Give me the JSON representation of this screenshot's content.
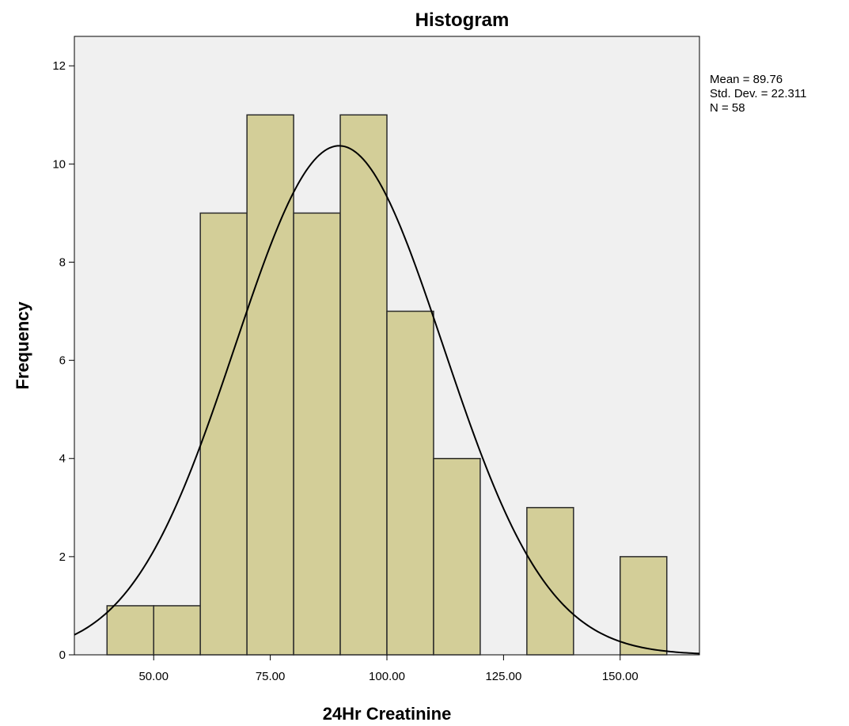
{
  "chart_data": {
    "type": "bar",
    "title": "Histogram",
    "xlabel": "24Hr Creatinine",
    "ylabel": "Frequency",
    "bins": [
      {
        "start": 40,
        "end": 50,
        "count": 1
      },
      {
        "start": 50,
        "end": 60,
        "count": 1
      },
      {
        "start": 60,
        "end": 70,
        "count": 9
      },
      {
        "start": 70,
        "end": 80,
        "count": 11
      },
      {
        "start": 80,
        "end": 90,
        "count": 9
      },
      {
        "start": 90,
        "end": 100,
        "count": 11
      },
      {
        "start": 100,
        "end": 110,
        "count": 7
      },
      {
        "start": 110,
        "end": 120,
        "count": 4
      },
      {
        "start": 120,
        "end": 130,
        "count": 0
      },
      {
        "start": 130,
        "end": 140,
        "count": 3
      },
      {
        "start": 140,
        "end": 150,
        "count": 0
      },
      {
        "start": 150,
        "end": 160,
        "count": 2
      }
    ],
    "xlim": [
      33,
      167
    ],
    "ylim": [
      0,
      12.6
    ],
    "x_ticks": [
      50,
      75,
      100,
      125,
      150
    ],
    "x_tick_labels": [
      "50.00",
      "75.00",
      "100.00",
      "125.00",
      "150.00"
    ],
    "y_ticks": [
      0,
      2,
      4,
      6,
      8,
      10,
      12
    ],
    "y_tick_labels": [
      "0",
      "2",
      "4",
      "6",
      "8",
      "10",
      "12"
    ],
    "normal_curve": {
      "mean": 89.76,
      "std_dev": 22.311,
      "n": 58,
      "bin_width": 10
    },
    "stats_lines": [
      "Mean = 89.76",
      "Std. Dev. = 22.311",
      "N = 58"
    ],
    "legend_position": "top-right outside plot",
    "grid": false,
    "colors": {
      "bar_fill": "#d3ce98",
      "bar_stroke": "#2a2a2a",
      "plot_background": "#f0f0f0",
      "curve": "#000000"
    }
  }
}
